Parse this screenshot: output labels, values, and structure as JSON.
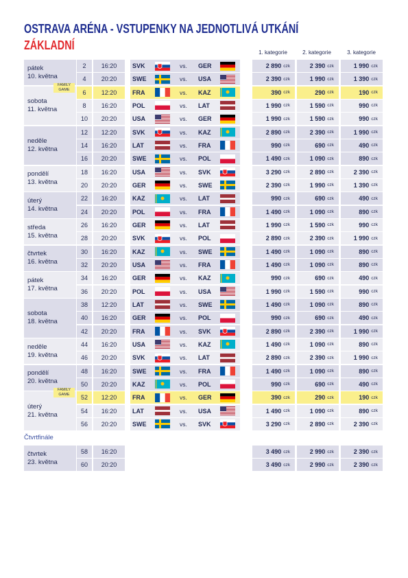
{
  "header": {
    "title": "OSTRAVA ARÉNA - VSTUPENKY NA JEDNOTLIVÁ UTKÁNÍ",
    "subtitle": "ZÁKLADNÍ",
    "categories": [
      "1. kategorie",
      "2. kategorie",
      "3. kategorie"
    ]
  },
  "vs": "vs.",
  "currency": "czk",
  "family_label": "FAMILY GAME",
  "groups": [
    {
      "day": "pátek",
      "date": "10. května",
      "matches": [
        {
          "no": 2,
          "time": "16:20",
          "home": "SVK",
          "away": "GER",
          "prices": [
            "2 890",
            "2 390",
            "1 990"
          ]
        },
        {
          "no": 4,
          "time": "20:20",
          "home": "SWE",
          "away": "USA",
          "prices": [
            "2 390",
            "1 990",
            "1 390"
          ]
        }
      ]
    },
    {
      "day": "sobota",
      "date": "11. května",
      "matches": [
        {
          "no": 6,
          "time": "12:20",
          "home": "FRA",
          "away": "KAZ",
          "prices": [
            "390",
            "290",
            "190"
          ],
          "family": true
        },
        {
          "no": 8,
          "time": "16:20",
          "home": "POL",
          "away": "LAT",
          "prices": [
            "1 990",
            "1 590",
            "990"
          ]
        },
        {
          "no": 10,
          "time": "20:20",
          "home": "USA",
          "away": "GER",
          "prices": [
            "1 990",
            "1 590",
            "990"
          ]
        }
      ]
    },
    {
      "day": "neděle",
      "date": "12. května",
      "matches": [
        {
          "no": 12,
          "time": "12:20",
          "home": "SVK",
          "away": "KAZ",
          "prices": [
            "2 890",
            "2 390",
            "1 990"
          ]
        },
        {
          "no": 14,
          "time": "16:20",
          "home": "LAT",
          "away": "FRA",
          "prices": [
            "990",
            "690",
            "490"
          ]
        },
        {
          "no": 16,
          "time": "20:20",
          "home": "SWE",
          "away": "POL",
          "prices": [
            "1 490",
            "1 090",
            "890"
          ]
        }
      ]
    },
    {
      "day": "pondělí",
      "date": "13. května",
      "matches": [
        {
          "no": 18,
          "time": "16:20",
          "home": "USA",
          "away": "SVK",
          "prices": [
            "3 290",
            "2 890",
            "2 390"
          ]
        },
        {
          "no": 20,
          "time": "20:20",
          "home": "GER",
          "away": "SWE",
          "prices": [
            "2 390",
            "1 990",
            "1 390"
          ]
        }
      ]
    },
    {
      "day": "úterý",
      "date": "14. května",
      "matches": [
        {
          "no": 22,
          "time": "16:20",
          "home": "KAZ",
          "away": "LAT",
          "prices": [
            "990",
            "690",
            "490"
          ]
        },
        {
          "no": 24,
          "time": "20:20",
          "home": "POL",
          "away": "FRA",
          "prices": [
            "1 490",
            "1 090",
            "890"
          ]
        }
      ]
    },
    {
      "day": "středa",
      "date": "15. května",
      "matches": [
        {
          "no": 26,
          "time": "16:20",
          "home": "GER",
          "away": "LAT",
          "prices": [
            "1 990",
            "1 590",
            "990"
          ]
        },
        {
          "no": 28,
          "time": "20:20",
          "home": "SVK",
          "away": "POL",
          "prices": [
            "2 890",
            "2 390",
            "1 990"
          ]
        }
      ]
    },
    {
      "day": "čtvrtek",
      "date": "16. května",
      "matches": [
        {
          "no": 30,
          "time": "16:20",
          "home": "KAZ",
          "away": "SWE",
          "prices": [
            "1 490",
            "1 090",
            "890"
          ]
        },
        {
          "no": 32,
          "time": "20:20",
          "home": "USA",
          "away": "FRA",
          "prices": [
            "1 490",
            "1 090",
            "890"
          ]
        }
      ]
    },
    {
      "day": "pátek",
      "date": "17. května",
      "matches": [
        {
          "no": 34,
          "time": "16:20",
          "home": "GER",
          "away": "KAZ",
          "prices": [
            "990",
            "690",
            "490"
          ]
        },
        {
          "no": 36,
          "time": "20:20",
          "home": "POL",
          "away": "USA",
          "prices": [
            "1 990",
            "1 590",
            "990"
          ]
        }
      ]
    },
    {
      "day": "sobota",
      "date": "18. května",
      "matches": [
        {
          "no": 38,
          "time": "12:20",
          "home": "LAT",
          "away": "SWE",
          "prices": [
            "1 490",
            "1 090",
            "890"
          ]
        },
        {
          "no": 40,
          "time": "16:20",
          "home": "GER",
          "away": "POL",
          "prices": [
            "990",
            "690",
            "490"
          ]
        },
        {
          "no": 42,
          "time": "20:20",
          "home": "FRA",
          "away": "SVK",
          "prices": [
            "2 890",
            "2 390",
            "1 990"
          ]
        }
      ]
    },
    {
      "day": "neděle",
      "date": "19. května",
      "matches": [
        {
          "no": 44,
          "time": "16:20",
          "home": "USA",
          "away": "KAZ",
          "prices": [
            "1 490",
            "1 090",
            "890"
          ]
        },
        {
          "no": 46,
          "time": "20:20",
          "home": "SVK",
          "away": "LAT",
          "prices": [
            "2 890",
            "2 390",
            "1 990"
          ]
        }
      ]
    },
    {
      "day": "pondělí",
      "date": "20. května",
      "matches": [
        {
          "no": 48,
          "time": "16:20",
          "home": "SWE",
          "away": "FRA",
          "prices": [
            "1 490",
            "1 090",
            "890"
          ]
        },
        {
          "no": 50,
          "time": "20:20",
          "home": "KAZ",
          "away": "POL",
          "prices": [
            "990",
            "690",
            "490"
          ]
        }
      ]
    },
    {
      "day": "úterý",
      "date": "21. května",
      "matches": [
        {
          "no": 52,
          "time": "12:20",
          "home": "FRA",
          "away": "GER",
          "prices": [
            "390",
            "290",
            "190"
          ],
          "family": true
        },
        {
          "no": 54,
          "time": "16:20",
          "home": "LAT",
          "away": "USA",
          "prices": [
            "1 490",
            "1 090",
            "890"
          ]
        },
        {
          "no": 56,
          "time": "20:20",
          "home": "SWE",
          "away": "SVK",
          "prices": [
            "3 290",
            "2 890",
            "2 390"
          ]
        }
      ]
    }
  ],
  "playoff": {
    "title": "Čtvrtfinále",
    "groups": [
      {
        "day": "čtvrtek",
        "date": "23. května",
        "matches": [
          {
            "no": 58,
            "time": "16:20",
            "prices": [
              "3 490",
              "2 990",
              "2 390"
            ]
          },
          {
            "no": 60,
            "time": "20:20",
            "prices": [
              "3 490",
              "2 990",
              "2 390"
            ]
          }
        ]
      }
    ]
  }
}
